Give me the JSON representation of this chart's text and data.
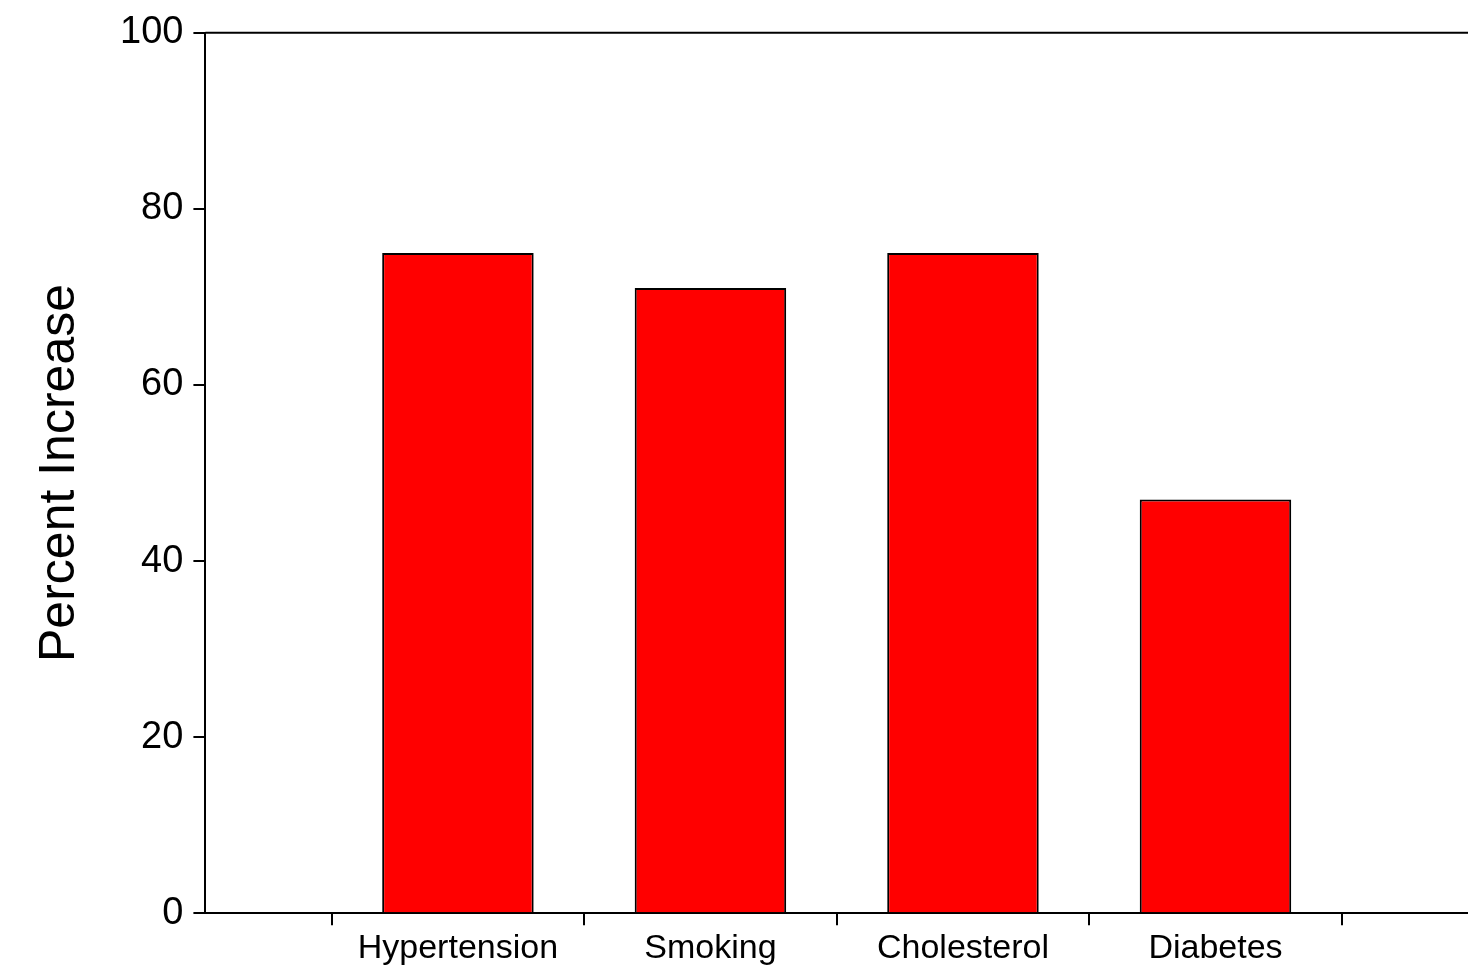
{
  "chart_data": {
    "type": "bar",
    "ylabel": "Percent Increase",
    "categories": [
      "Hypertension",
      "Smoking",
      "Cholesterol",
      "Diabetes"
    ],
    "values": [
      75,
      71,
      75,
      47
    ],
    "color": "#ff0000",
    "ylim": [
      0,
      100
    ],
    "yticks": [
      0,
      20,
      40,
      60,
      80,
      100
    ],
    "grid": false,
    "legend": false
  }
}
